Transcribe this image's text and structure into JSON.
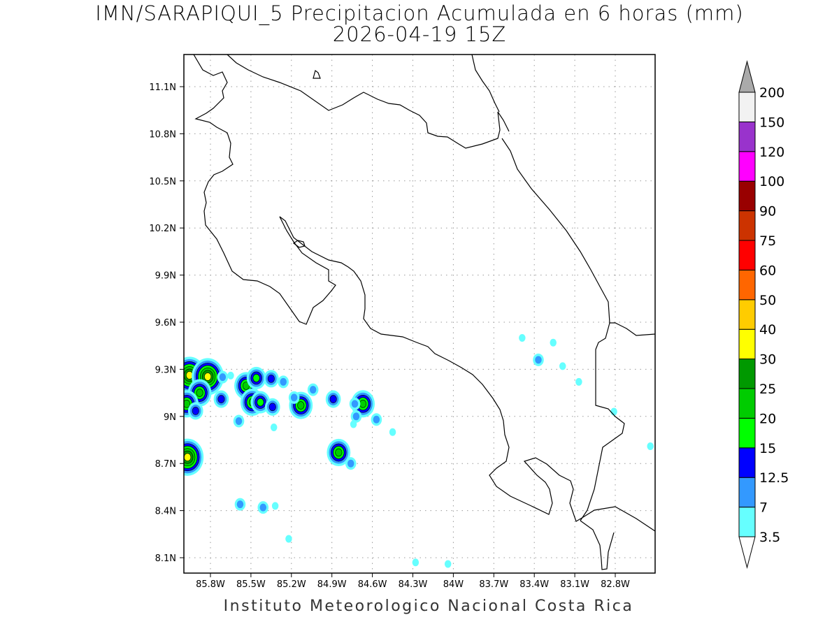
{
  "title": {
    "line1": "IMN/SARAPIQUI_5 Precipitacion Acumulada en 6 horas (mm)",
    "line2": "2026-04-19 15Z"
  },
  "credit": "Instituto Meteorologico Nacional Costa Rica",
  "map": {
    "lon_ticks": [
      "85.8W",
      "85.5W",
      "85.2W",
      "84.9W",
      "84.6W",
      "84.3W",
      "84W",
      "83.7W",
      "83.4W",
      "83.1W",
      "82.8W"
    ],
    "lon_values": [
      -85.8,
      -85.5,
      -85.2,
      -84.9,
      -84.6,
      -84.3,
      -84.0,
      -83.7,
      -83.4,
      -83.1,
      -82.8
    ],
    "lat_ticks": [
      "11.1N",
      "10.8N",
      "10.5N",
      "10.2N",
      "9.9N",
      "9.6N",
      "9.3N",
      "9N",
      "8.7N",
      "8.4N",
      "8.1N"
    ],
    "lat_values": [
      11.1,
      10.8,
      10.5,
      10.2,
      9.9,
      9.6,
      9.3,
      9.0,
      8.7,
      8.4,
      8.1
    ]
  },
  "colorbar": {
    "levels": [
      "3.5",
      "7",
      "12.5",
      "15",
      "20",
      "25",
      "30",
      "40",
      "50",
      "60",
      "75",
      "90",
      "100",
      "120",
      "150",
      "200"
    ],
    "colors": [
      "#66ffff",
      "#3399ff",
      "#0000ff",
      "#00ff00",
      "#00cc00",
      "#009900",
      "#ffff00",
      "#ffcc00",
      "#ff6600",
      "#ff0000",
      "#cc3300",
      "#990000",
      "#ff00ff",
      "#9933cc",
      "#f2f2f2"
    ],
    "over_color": "#aaaaaa",
    "under_color": "#ffffff"
  },
  "precip_cells": [
    {
      "lon": -85.955,
      "lat": 9.262,
      "max": 6
    },
    {
      "lon": -85.82,
      "lat": 9.253,
      "max": 6
    },
    {
      "lon": -85.88,
      "lat": 9.15,
      "max": 4
    },
    {
      "lon": -85.976,
      "lat": 9.08,
      "max": 4
    },
    {
      "lon": -85.91,
      "lat": 9.035,
      "max": 2
    },
    {
      "lon": -85.71,
      "lat": 9.25,
      "max": 1
    },
    {
      "lon": -85.65,
      "lat": 9.26,
      "max": 0
    },
    {
      "lon": -85.72,
      "lat": 9.11,
      "max": 2
    },
    {
      "lon": -85.536,
      "lat": 9.195,
      "max": 4
    },
    {
      "lon": -85.46,
      "lat": 9.244,
      "max": 3
    },
    {
      "lon": -85.49,
      "lat": 9.09,
      "max": 4
    },
    {
      "lon": -85.43,
      "lat": 9.09,
      "max": 3
    },
    {
      "lon": -85.35,
      "lat": 9.24,
      "max": 2
    },
    {
      "lon": -85.26,
      "lat": 9.22,
      "max": 1
    },
    {
      "lon": -85.34,
      "lat": 9.06,
      "max": 2
    },
    {
      "lon": -85.13,
      "lat": 9.07,
      "max": 4
    },
    {
      "lon": -85.18,
      "lat": 9.12,
      "max": 1
    },
    {
      "lon": -85.04,
      "lat": 9.17,
      "max": 1
    },
    {
      "lon": -84.89,
      "lat": 9.11,
      "max": 2
    },
    {
      "lon": -84.67,
      "lat": 9.08,
      "max": 4
    },
    {
      "lon": -84.73,
      "lat": 9.08,
      "max": 1
    },
    {
      "lon": -84.72,
      "lat": 9.0,
      "max": 1
    },
    {
      "lon": -84.57,
      "lat": 8.98,
      "max": 1
    },
    {
      "lon": -84.74,
      "lat": 8.95,
      "max": 0
    },
    {
      "lon": -84.85,
      "lat": 8.77,
      "max": 4
    },
    {
      "lon": -84.76,
      "lat": 8.7,
      "max": 1
    },
    {
      "lon": -85.97,
      "lat": 8.74,
      "max": 6
    },
    {
      "lon": -85.58,
      "lat": 8.44,
      "max": 1
    },
    {
      "lon": -85.41,
      "lat": 8.42,
      "max": 1
    },
    {
      "lon": -85.32,
      "lat": 8.43,
      "max": 0
    },
    {
      "lon": -85.22,
      "lat": 8.22,
      "max": 0
    },
    {
      "lon": -85.59,
      "lat": 8.97,
      "max": 1
    },
    {
      "lon": -85.33,
      "lat": 8.93,
      "max": 0
    },
    {
      "lon": -84.45,
      "lat": 8.9,
      "max": 0
    },
    {
      "lon": -83.49,
      "lat": 9.5,
      "max": 0
    },
    {
      "lon": -83.37,
      "lat": 9.36,
      "max": 1
    },
    {
      "lon": -83.26,
      "lat": 9.47,
      "max": 0
    },
    {
      "lon": -83.19,
      "lat": 9.32,
      "max": 0
    },
    {
      "lon": -83.07,
      "lat": 9.22,
      "max": 0
    },
    {
      "lon": -82.81,
      "lat": 9.03,
      "max": 0
    },
    {
      "lon": -82.54,
      "lat": 8.81,
      "max": 0
    },
    {
      "lon": -84.28,
      "lat": 8.07,
      "max": 0
    },
    {
      "lon": -84.04,
      "lat": 8.06,
      "max": 0
    }
  ]
}
